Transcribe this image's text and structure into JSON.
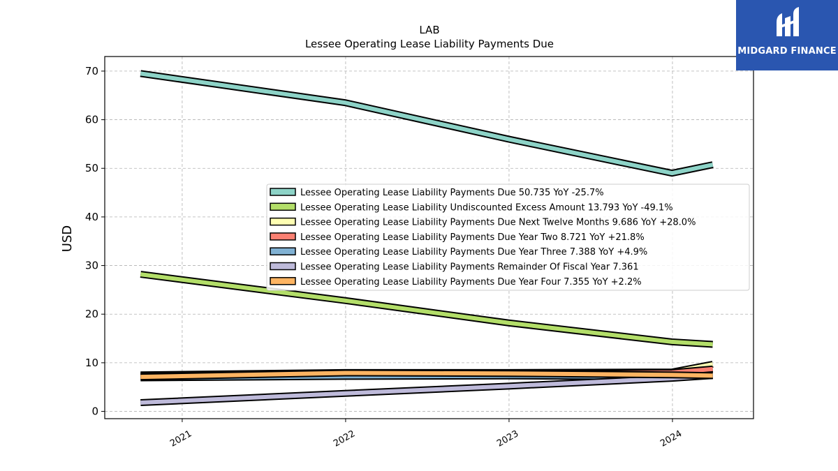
{
  "logo": {
    "text": "MIDGARD FINANCE",
    "color": "#2a56b0"
  },
  "chart_data": {
    "type": "line",
    "title": "LAB",
    "subtitle": "Lessee Operating Lease Liability Payments Due",
    "xlabel": "",
    "ylabel": "USD",
    "x_ticks": [
      "2021",
      "2022",
      "2023",
      "2024"
    ],
    "y_ticks": [
      0,
      10,
      20,
      30,
      40,
      50,
      60,
      70
    ],
    "ylim": [
      -1.5,
      73
    ],
    "xlim": [
      "2020-07-12",
      "2024-06-30"
    ],
    "grid": true,
    "legend_position": "center-right",
    "x": [
      "2020-09-30",
      "2021-12-31",
      "2022-12-31",
      "2023-12-31",
      "2024-03-31"
    ],
    "series": [
      {
        "name": "Lessee Operating Lease Liability Payments Due  50.735 YoY -25.7%",
        "color": "#8dd3c7",
        "values": [
          69.5,
          63.5,
          56.0,
          49.0,
          50.735
        ]
      },
      {
        "name": "Lessee Operating Lease Liability Undiscounted Excess Amount  13.793 YoY -49.1%",
        "color": "#b3de69",
        "values": [
          28.2,
          22.8,
          18.2,
          14.3,
          13.793
        ]
      },
      {
        "name": "Lessee Operating Lease Liability Payments Due Next Twelve Months  9.686 YoY +28.0%",
        "color": "#ffffb3",
        "values": [
          7.5,
          8.0,
          8.0,
          8.1,
          9.686
        ]
      },
      {
        "name": "Lessee Operating Lease Liability Payments Due Year Two  8.721 YoY +21.8%",
        "color": "#fb8072",
        "values": [
          7.3,
          7.7,
          7.7,
          8.0,
          8.721
        ]
      },
      {
        "name": "Lessee Operating Lease Liability Payments Due Year Three  7.388 YoY +4.9%",
        "color": "#80b1d3",
        "values": [
          6.9,
          7.2,
          7.3,
          7.1,
          7.388
        ]
      },
      {
        "name": "Lessee Operating Lease Liability Payments Remainder Of Fiscal Year  7.361",
        "color": "#bebada",
        "values": [
          1.8,
          3.7,
          5.2,
          6.8,
          7.361
        ]
      },
      {
        "name": "Lessee Operating Lease Liability Payments Due Year Four  7.355 YoY +2.2%",
        "color": "#fdb462",
        "values": [
          7.1,
          7.9,
          7.8,
          7.5,
          7.355
        ]
      }
    ]
  }
}
